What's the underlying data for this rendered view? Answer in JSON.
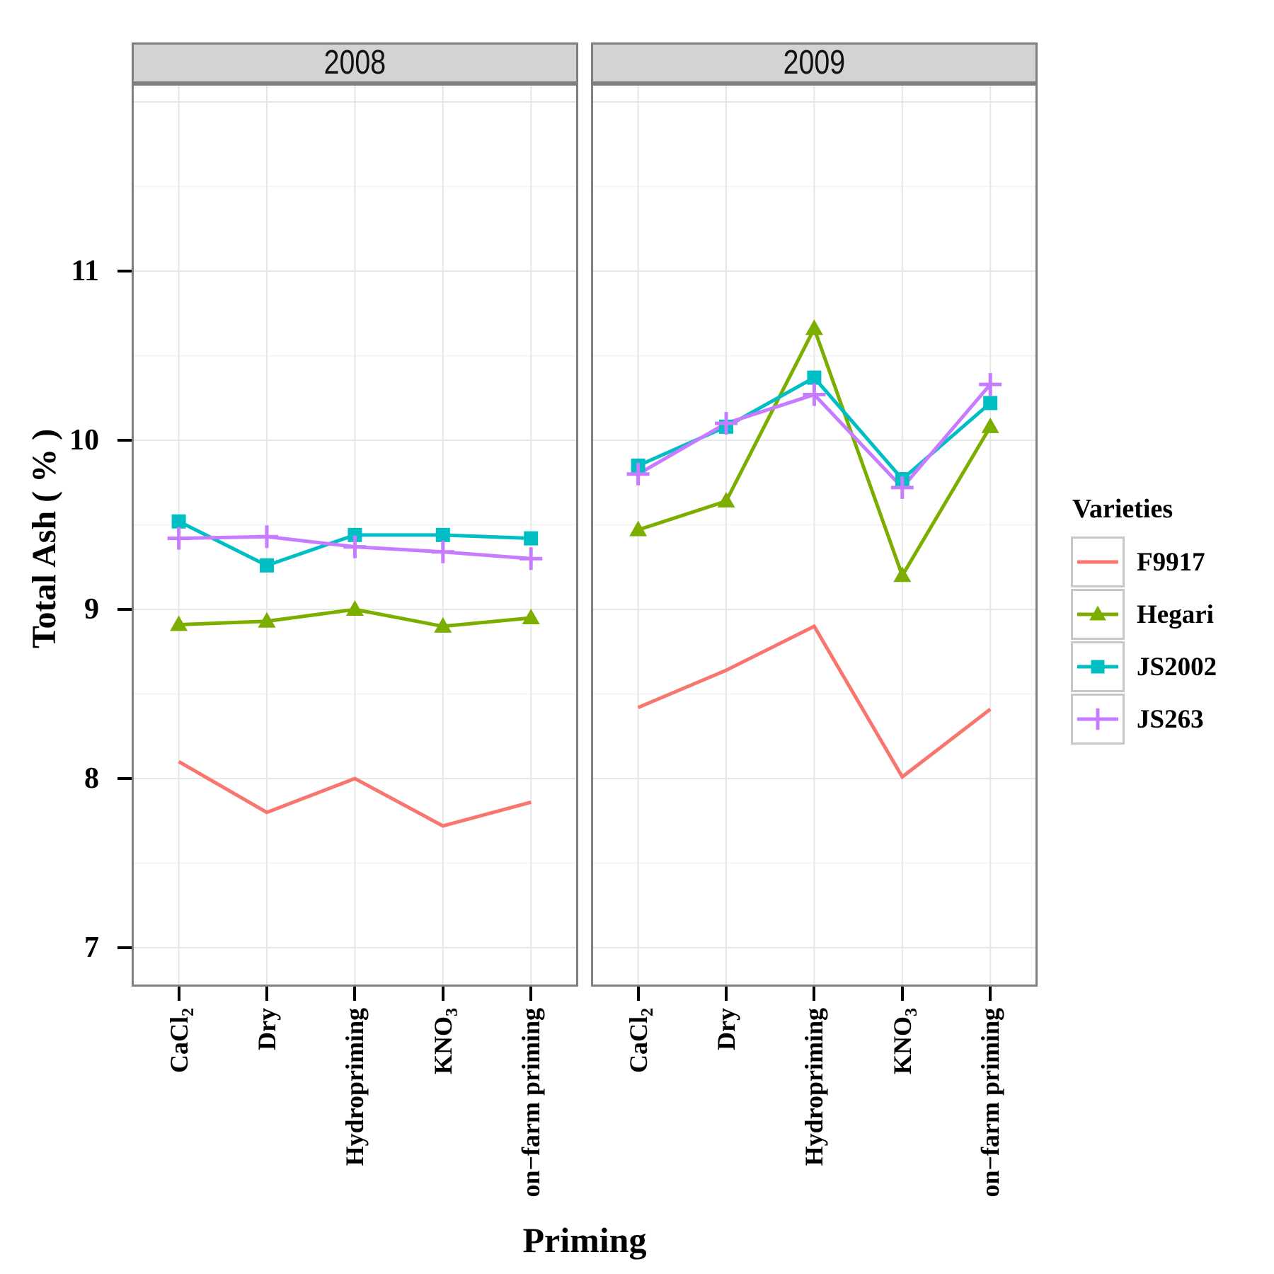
{
  "chart_data": {
    "type": "line",
    "title": "",
    "xlabel": "Priming",
    "ylabel": "Total Ash ( % )",
    "ylim": [
      6.77,
      12.11
    ],
    "grid": true,
    "facets": [
      "2008",
      "2009"
    ],
    "categories": [
      "CaCl2",
      "Dry",
      "Hydropriming",
      "KNO3",
      "on-farm priming"
    ],
    "categories_rich": [
      {
        "text": "CaCl",
        "sub": "2"
      },
      {
        "text": "Dry",
        "sub": ""
      },
      {
        "text": "Hydropriming",
        "sub": ""
      },
      {
        "text": "KNO",
        "sub": "3"
      },
      {
        "text": "on−farm priming",
        "sub": ""
      }
    ],
    "y_axis": {
      "ticks": [
        7,
        8,
        9,
        10,
        11
      ],
      "grid_major": [
        7,
        8,
        9,
        10,
        11,
        12
      ],
      "grid_minor": [
        7.5,
        8.5,
        9.5,
        10.5,
        11.5
      ]
    },
    "series": [
      {
        "name": "F9917",
        "color": "#F8766D",
        "marker": "none",
        "values": {
          "2008": [
            8.1,
            7.8,
            8.0,
            7.72,
            7.86
          ],
          "2009": [
            8.42,
            8.64,
            8.9,
            8.01,
            8.41
          ]
        }
      },
      {
        "name": "Hegari",
        "color": "#7CAE00",
        "marker": "triangle",
        "values": {
          "2008": [
            8.91,
            8.93,
            9.0,
            8.9,
            8.95
          ],
          "2009": [
            9.47,
            9.64,
            10.66,
            9.2,
            10.08
          ]
        }
      },
      {
        "name": "JS2002",
        "color": "#00BFC4",
        "marker": "square",
        "values": {
          "2008": [
            9.52,
            9.26,
            9.44,
            9.44,
            9.42
          ],
          "2009": [
            9.85,
            10.08,
            10.37,
            9.77,
            10.22
          ]
        }
      },
      {
        "name": "JS263",
        "color": "#C77CFF",
        "marker": "plus",
        "values": {
          "2008": [
            9.42,
            9.43,
            9.37,
            9.34,
            9.3
          ],
          "2009": [
            9.8,
            10.1,
            10.27,
            9.72,
            10.33
          ]
        }
      }
    ],
    "legend": {
      "title": "Varieties",
      "position": "right"
    },
    "style": {
      "strip_fill": "#d3d3d3",
      "panel_border": "#7f7f7f",
      "grid_major_color": "#e7e7e7",
      "grid_minor_color": "#f4f4f4",
      "tick_color": "#000000",
      "text_color": "#000000",
      "background": "#ffffff"
    }
  }
}
